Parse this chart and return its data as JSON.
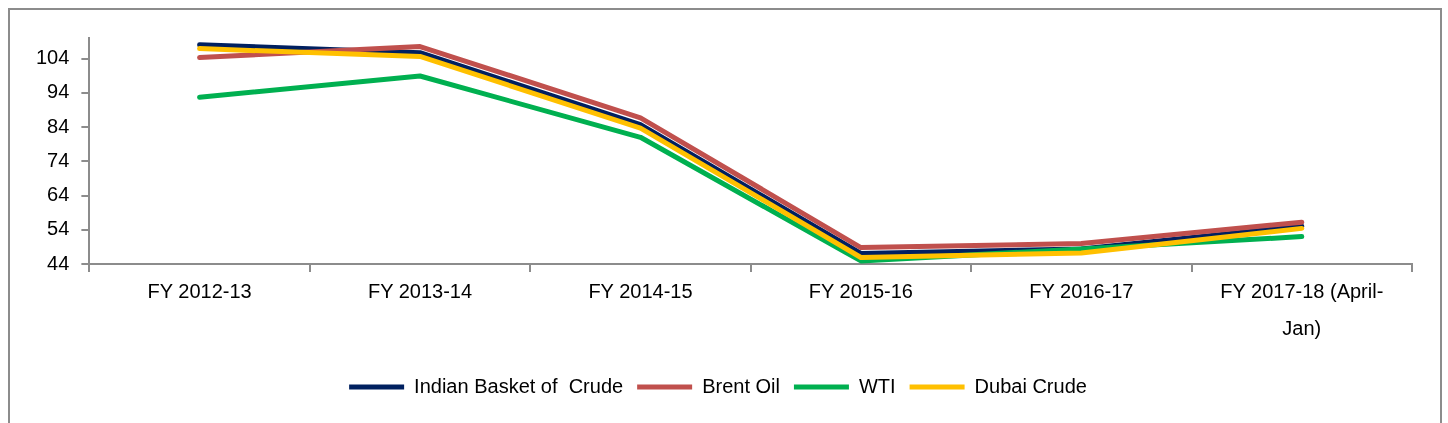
{
  "chart_data": {
    "type": "line",
    "categories": [
      "FY 2012-13",
      "FY 2013-14",
      "FY 2014-15",
      "FY 2015-16",
      "FY 2016-17",
      "FY 2017-18 (April-Jan)"
    ],
    "series": [
      {
        "name": "Indian Basket of  Crude",
        "color": "#002060",
        "values": [
          108.0,
          105.7,
          84.7,
          47.1,
          48.4,
          55.0
        ]
      },
      {
        "name": "Brent Oil",
        "color": "#c0504d",
        "values": [
          104.3,
          107.5,
          86.7,
          48.8,
          50.0,
          56.2
        ]
      },
      {
        "name": "WTI",
        "color": "#00b050",
        "values": [
          92.7,
          98.9,
          81.0,
          44.9,
          48.4,
          52.0
        ]
      },
      {
        "name": "Dubai Crude",
        "color": "#ffc000",
        "values": [
          106.9,
          104.6,
          83.7,
          45.9,
          47.2,
          54.4
        ]
      }
    ],
    "ylim": [
      44,
      110
    ],
    "yticks": [
      44,
      54,
      64,
      74,
      84,
      94,
      104
    ],
    "grid": false,
    "legend": "bottom",
    "marker": "none",
    "line_style": "solid"
  }
}
